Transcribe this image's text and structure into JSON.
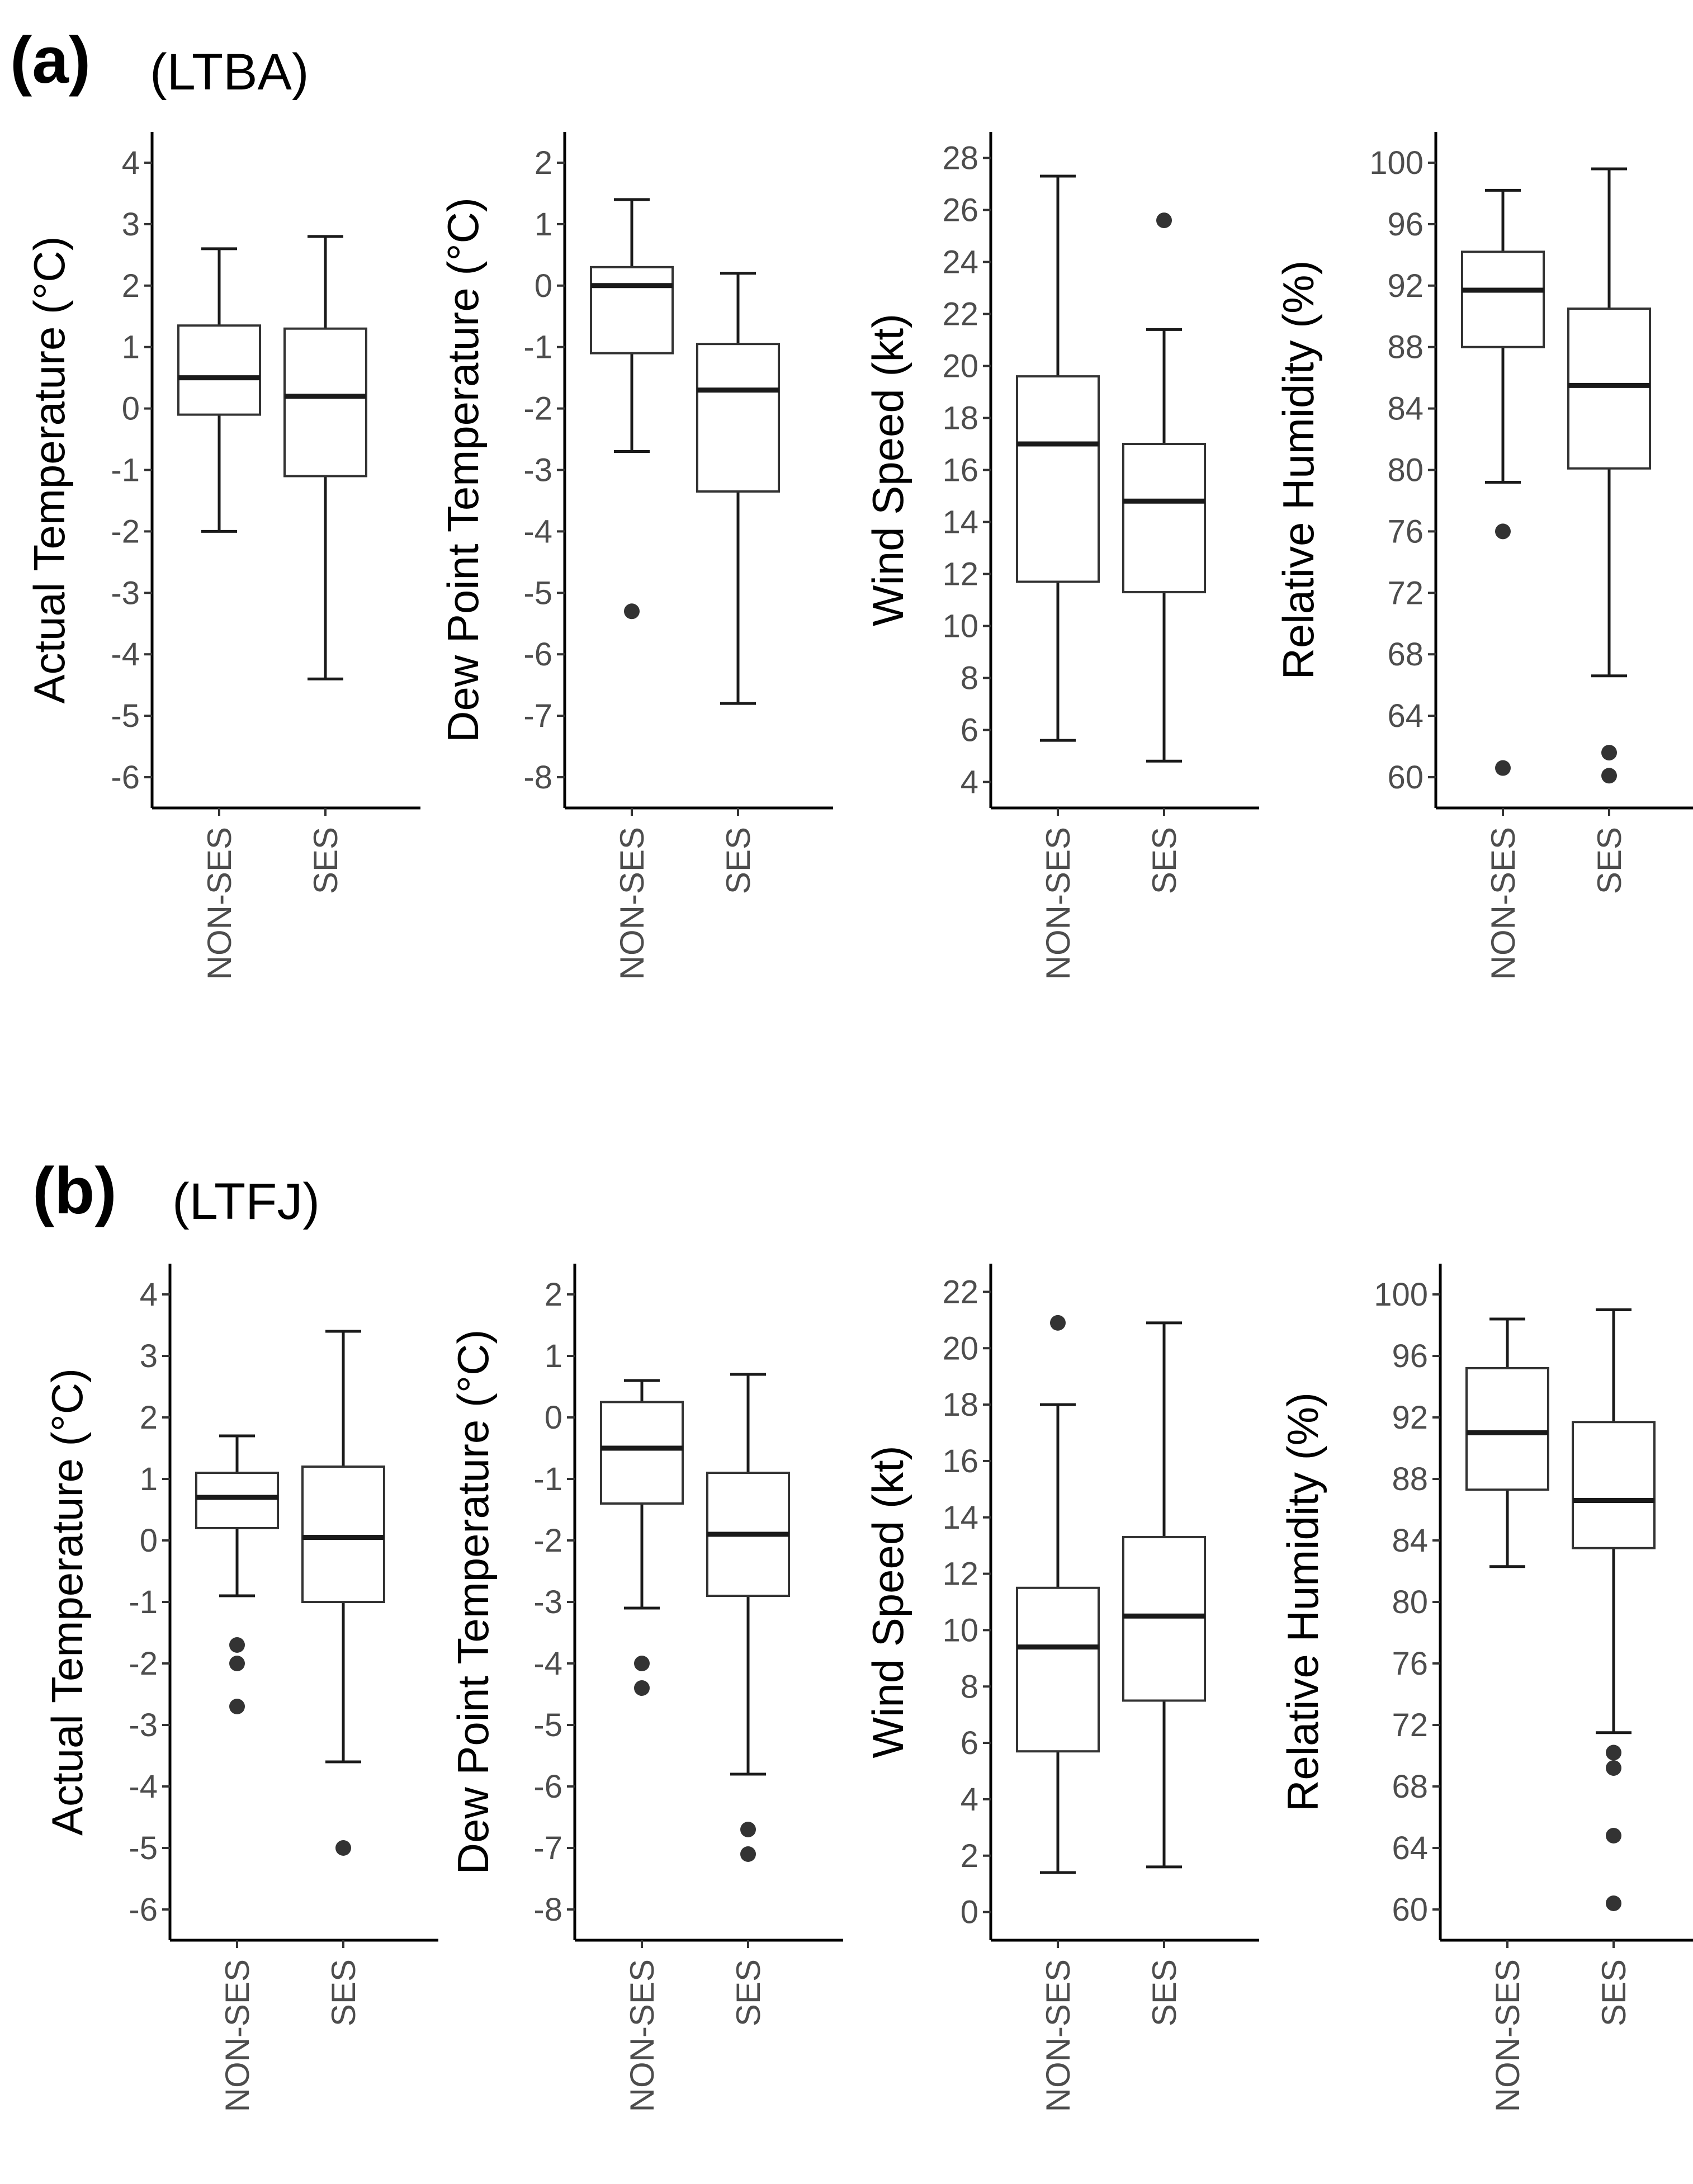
{
  "panels": [
    {
      "letter": "(a)",
      "site": "(LTBA)"
    },
    {
      "letter": "(b)",
      "site": "(LTFJ)"
    }
  ],
  "chart_data": [
    {
      "type": "boxplot",
      "panel": "(a)",
      "site": "(LTBA)",
      "ylabel": "Actual Temperature (°C)",
      "categories": [
        "NON-SES",
        "SES"
      ],
      "ylim": [
        -6.5,
        4.5
      ],
      "yticks": [
        4,
        3,
        2,
        1,
        0,
        -1,
        -2,
        -3,
        -4,
        -5,
        -6
      ],
      "boxes": [
        {
          "category": "NON-SES",
          "whisker_low": -2.0,
          "q1": -0.1,
          "median": 0.5,
          "q3": 1.35,
          "whisker_high": 2.6,
          "outliers": []
        },
        {
          "category": "SES",
          "whisker_low": -4.4,
          "q1": -1.1,
          "median": 0.2,
          "q3": 1.3,
          "whisker_high": 2.8,
          "outliers": []
        }
      ]
    },
    {
      "type": "boxplot",
      "panel": "(a)",
      "site": "(LTBA)",
      "ylabel": "Dew Point Temperature (°C)",
      "categories": [
        "NON-SES",
        "SES"
      ],
      "ylim": [
        -8.5,
        2.5
      ],
      "yticks": [
        2,
        1,
        0,
        -1,
        -2,
        -3,
        -4,
        -5,
        -6,
        -7,
        -8
      ],
      "boxes": [
        {
          "category": "NON-SES",
          "whisker_low": -2.7,
          "q1": -1.1,
          "median": 0.0,
          "q3": 0.3,
          "whisker_high": 1.4,
          "outliers": [
            -5.3
          ]
        },
        {
          "category": "SES",
          "whisker_low": -6.8,
          "q1": -3.35,
          "median": -1.7,
          "q3": -0.95,
          "whisker_high": 0.2,
          "outliers": []
        }
      ]
    },
    {
      "type": "boxplot",
      "panel": "(a)",
      "site": "(LTBA)",
      "ylabel": "Wind Speed (kt)",
      "categories": [
        "NON-SES",
        "SES"
      ],
      "ylim": [
        3,
        29
      ],
      "yticks": [
        28,
        26,
        24,
        22,
        20,
        18,
        16,
        14,
        12,
        10,
        8,
        6,
        4
      ],
      "boxes": [
        {
          "category": "NON-SES",
          "whisker_low": 5.6,
          "q1": 11.7,
          "median": 17.0,
          "q3": 19.6,
          "whisker_high": 27.3,
          "outliers": []
        },
        {
          "category": "SES",
          "whisker_low": 4.8,
          "q1": 11.3,
          "median": 14.8,
          "q3": 17.0,
          "whisker_high": 21.4,
          "outliers": [
            25.6
          ]
        }
      ]
    },
    {
      "type": "boxplot",
      "panel": "(a)",
      "site": "(LTBA)",
      "ylabel": "Relative Humidity (%)",
      "categories": [
        "NON-SES",
        "SES"
      ],
      "ylim": [
        58,
        102
      ],
      "yticks": [
        100,
        96,
        92,
        88,
        84,
        80,
        76,
        72,
        68,
        64,
        60
      ],
      "boxes": [
        {
          "category": "NON-SES",
          "whisker_low": 79.2,
          "q1": 88.0,
          "median": 91.7,
          "q3": 94.2,
          "whisker_high": 98.2,
          "outliers": [
            76.0,
            60.6
          ]
        },
        {
          "category": "SES",
          "whisker_low": 66.6,
          "q1": 80.1,
          "median": 85.5,
          "q3": 90.5,
          "whisker_high": 99.6,
          "outliers": [
            61.6,
            60.1
          ]
        }
      ]
    },
    {
      "type": "boxplot",
      "panel": "(b)",
      "site": "(LTFJ)",
      "ylabel": "Actual Temperature (°C)",
      "categories": [
        "NON-SES",
        "SES"
      ],
      "ylim": [
        -6.5,
        4.5
      ],
      "yticks": [
        4,
        3,
        2,
        1,
        0,
        -1,
        -2,
        -3,
        -4,
        -5,
        -6
      ],
      "boxes": [
        {
          "category": "NON-SES",
          "whisker_low": -0.9,
          "q1": 0.2,
          "median": 0.7,
          "q3": 1.1,
          "whisker_high": 1.7,
          "outliers": [
            -1.7,
            -2.0,
            -2.7
          ]
        },
        {
          "category": "SES",
          "whisker_low": -3.6,
          "q1": -1.0,
          "median": 0.05,
          "q3": 1.2,
          "whisker_high": 3.4,
          "outliers": [
            -5.0
          ]
        }
      ]
    },
    {
      "type": "boxplot",
      "panel": "(b)",
      "site": "(LTFJ)",
      "ylabel": "Dew Point Temperature (°C)",
      "categories": [
        "NON-SES",
        "SES"
      ],
      "ylim": [
        -8.5,
        2.5
      ],
      "yticks": [
        2,
        1,
        0,
        -1,
        -2,
        -3,
        -4,
        -5,
        -6,
        -7,
        -8
      ],
      "boxes": [
        {
          "category": "NON-SES",
          "whisker_low": -3.1,
          "q1": -1.4,
          "median": -0.5,
          "q3": 0.25,
          "whisker_high": 0.6,
          "outliers": [
            -4.0,
            -4.4
          ]
        },
        {
          "category": "SES",
          "whisker_low": -5.8,
          "q1": -2.9,
          "median": -1.9,
          "q3": -0.9,
          "whisker_high": 0.7,
          "outliers": [
            -6.7,
            -7.1
          ]
        }
      ]
    },
    {
      "type": "boxplot",
      "panel": "(b)",
      "site": "(LTFJ)",
      "ylabel": "Wind Speed (kt)",
      "categories": [
        "NON-SES",
        "SES"
      ],
      "ylim": [
        -1,
        23
      ],
      "yticks": [
        22,
        20,
        18,
        16,
        14,
        12,
        10,
        8,
        6,
        4,
        2,
        0
      ],
      "boxes": [
        {
          "category": "NON-SES",
          "whisker_low": 1.4,
          "q1": 5.7,
          "median": 9.4,
          "q3": 11.5,
          "whisker_high": 18.0,
          "outliers": [
            20.9
          ]
        },
        {
          "category": "SES",
          "whisker_low": 1.6,
          "q1": 7.5,
          "median": 10.5,
          "q3": 13.3,
          "whisker_high": 20.9,
          "outliers": []
        }
      ]
    },
    {
      "type": "boxplot",
      "panel": "(b)",
      "site": "(LTFJ)",
      "ylabel": "Relative Humidity (%)",
      "categories": [
        "NON-SES",
        "SES"
      ],
      "ylim": [
        58,
        102
      ],
      "yticks": [
        100,
        96,
        92,
        88,
        84,
        80,
        76,
        72,
        68,
        64,
        60
      ],
      "boxes": [
        {
          "category": "NON-SES",
          "whisker_low": 82.3,
          "q1": 87.3,
          "median": 91.0,
          "q3": 95.2,
          "whisker_high": 98.4,
          "outliers": []
        },
        {
          "category": "SES",
          "whisker_low": 71.5,
          "q1": 83.5,
          "median": 86.6,
          "q3": 91.7,
          "whisker_high": 99.0,
          "outliers": [
            70.2,
            69.2,
            64.8,
            60.4
          ]
        }
      ]
    }
  ]
}
